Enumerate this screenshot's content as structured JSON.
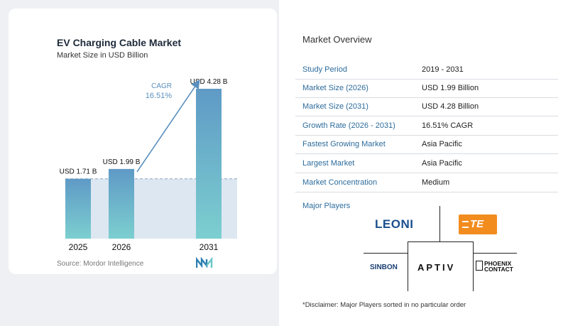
{
  "chart": {
    "title": "EV Charging Cable Market",
    "subtitle": "Market Size in USD Billion",
    "source": "Source: Mordor Intelligence",
    "cagr_label": "CAGR",
    "cagr_value": "16.51%"
  },
  "chart_data": {
    "type": "bar",
    "categories": [
      "2025",
      "2026",
      "2031"
    ],
    "values": [
      1.71,
      1.99,
      4.28
    ],
    "data_labels": [
      "USD 1.71 B",
      "USD 1.99 B",
      "USD 4.28 B"
    ],
    "ylim": [
      0,
      4.28
    ],
    "title": "EV Charging Cable Market",
    "subtitle": "Market Size in USD Billion",
    "xlabel": "",
    "ylabel": "",
    "grid": false,
    "annotation": "CAGR 16.51%",
    "colors": {
      "bar_top": "#5f9ac6",
      "bar_bottom": "#7ccfd0",
      "shade": "#dde7f1",
      "arrow": "#5a8fbd",
      "cagr_text": "#5a8fbd"
    }
  },
  "overview": {
    "title": "Market Overview",
    "rows": [
      {
        "label": "Study Period",
        "value": "2019 - 2031"
      },
      {
        "label": "Market Size (2026)",
        "value": "USD 1.99 Billion"
      },
      {
        "label": "Market Size (2031)",
        "value": "USD 4.28 Billion"
      },
      {
        "label": "Growth Rate (2026 - 2031)",
        "value": "16.51% CAGR"
      },
      {
        "label": "Fastest Growing Market",
        "value": "Asia Pacific"
      },
      {
        "label": "Largest Market",
        "value": "Asia Pacific"
      },
      {
        "label": "Market Concentration",
        "value": "Medium"
      }
    ],
    "players_title": "Major Players",
    "players": {
      "leoni": "LEONI",
      "te": "TE",
      "sinbon": "SINBON",
      "aptiv": "APTIV",
      "phoenix_1": "PHOENIX",
      "phoenix_2": "CONTACT"
    },
    "disclaimer": "*Disclaimer: Major Players sorted in no particular order"
  }
}
